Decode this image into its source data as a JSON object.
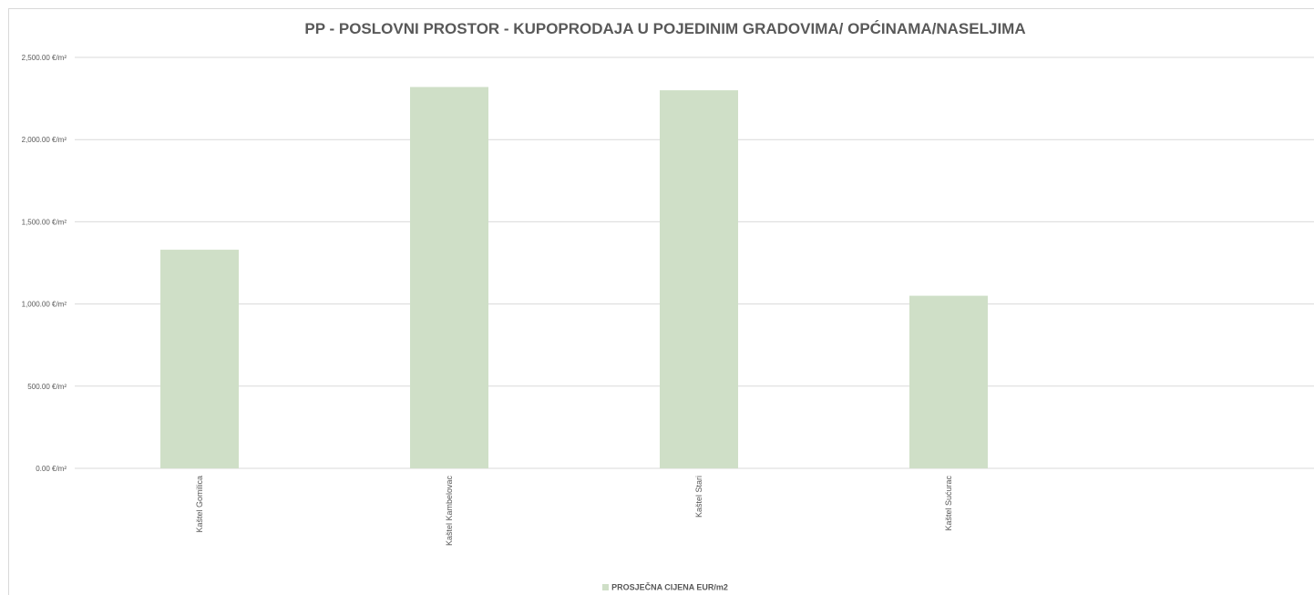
{
  "chart_data": {
    "type": "bar",
    "title": "PP - POSLOVNI PROSTOR - KUPOPRODAJA U POJEDINIM GRADOVIMA/ OPĆINAMA/NASELJIMA",
    "categories": [
      "Kaštel Gomilica",
      "Kaštel Kambelovac",
      "Kaštel Stari",
      "Kaštel Sućurac"
    ],
    "series": [
      {
        "name": "PROSJEČNA CIJENA EUR/m2",
        "values": [
          1330,
          2320,
          2300,
          1050
        ]
      }
    ],
    "y_ticks": [
      "0.00 €/m²",
      "500.00 €/m²",
      "1,000.00 €/m²",
      "1,500.00 €/m²",
      "2,000.00 €/m²",
      "2,500.00 €/m²"
    ],
    "ylim": [
      0,
      2500
    ],
    "xlabel": "",
    "ylabel": "",
    "grid": true,
    "legend_position": "bottom",
    "bar_color": "#cfdfc7",
    "grid_color": "#d9d9d9",
    "text_color": "#595959"
  }
}
